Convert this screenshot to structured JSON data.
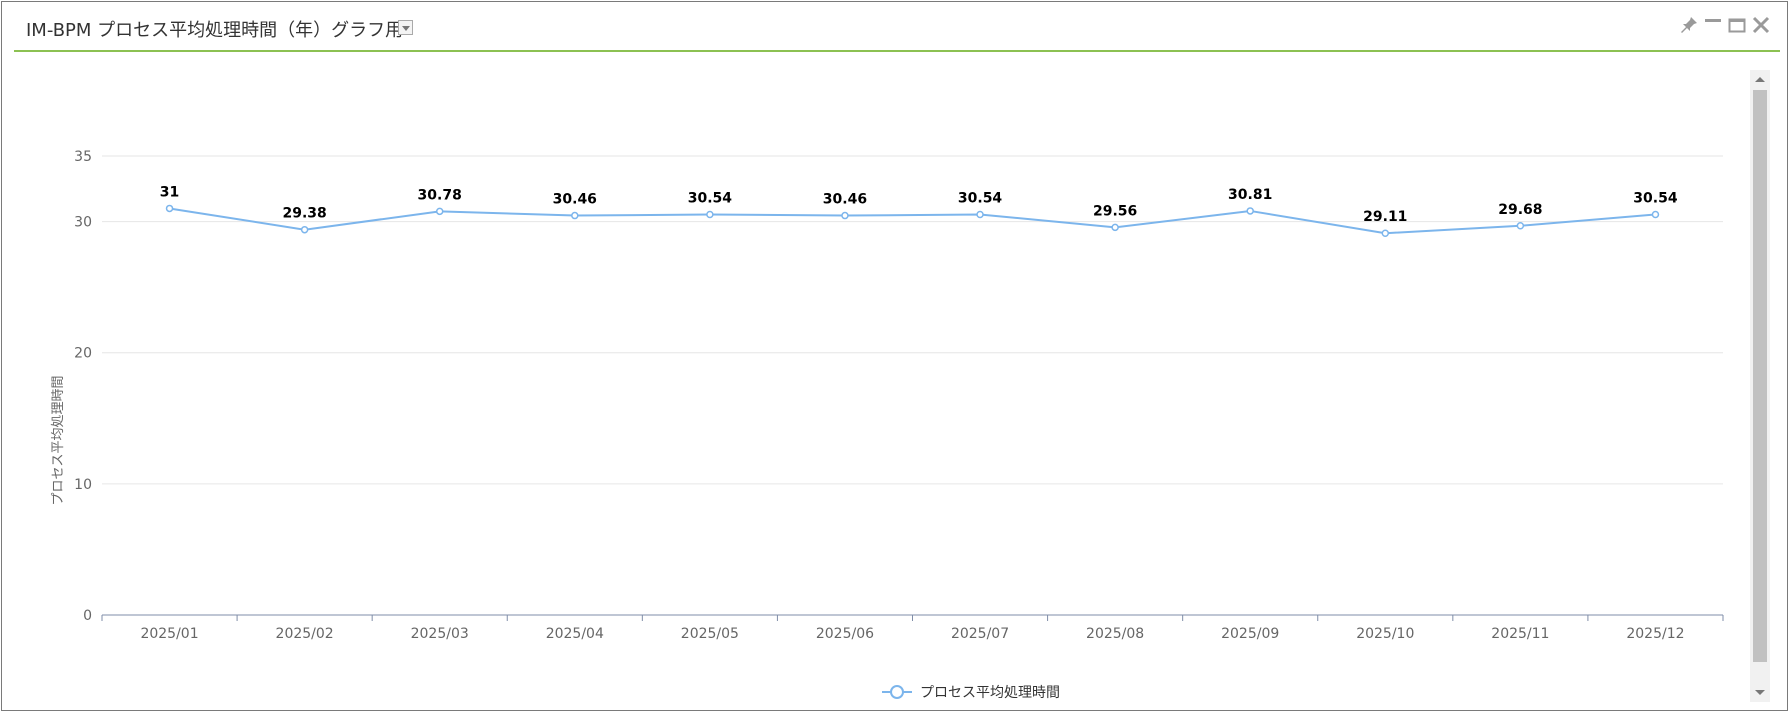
{
  "window": {
    "title": "IM-BPM プロセス平均処理時間（年）グラフ用",
    "icons": [
      "pin-icon",
      "minimize-icon",
      "maximize-icon",
      "close-icon"
    ],
    "accent_color": "#8cc152"
  },
  "chart_data": {
    "type": "line",
    "categories": [
      "2025/01",
      "2025/02",
      "2025/03",
      "2025/04",
      "2025/05",
      "2025/06",
      "2025/07",
      "2025/08",
      "2025/09",
      "2025/10",
      "2025/11",
      "2025/12"
    ],
    "series": [
      {
        "name": "プロセス平均処理時間",
        "values": [
          31,
          29.38,
          30.78,
          30.46,
          30.54,
          30.46,
          30.54,
          29.56,
          30.81,
          29.11,
          29.68,
          30.54
        ],
        "labels": [
          "31",
          "29.38",
          "30.78",
          "30.46",
          "30.54",
          "30.46",
          "30.54",
          "29.56",
          "30.81",
          "29.11",
          "29.68",
          "30.54"
        ],
        "color": "#7cb5ec"
      }
    ],
    "xlabel": "",
    "ylabel": "プロセス平均処理時間",
    "ylim": [
      0,
      35
    ],
    "yticks": [
      "0",
      "10",
      "20",
      "30",
      "35"
    ],
    "grid": true,
    "legend_position": "bottom-center"
  }
}
